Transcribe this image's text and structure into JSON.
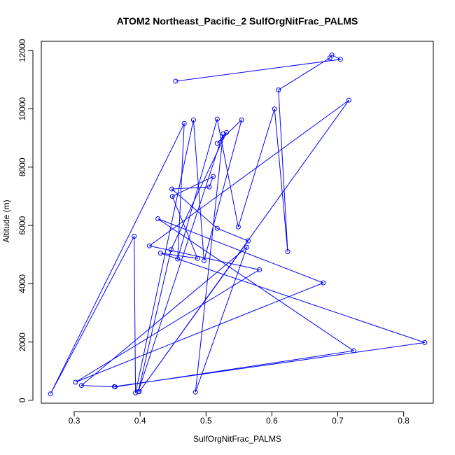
{
  "chart_data": {
    "type": "line",
    "title": "ATOM2 Northeast_Pacific_2 SulfOrgNitFrac_PALMS",
    "xlabel": "SulfOrgNitFrac_PALMS",
    "ylabel": "Altitude (m)",
    "xlim": [
      0.25,
      0.845
    ],
    "ylim": [
      -100,
      12320
    ],
    "xticks": [
      0.3,
      0.4,
      0.5,
      0.6,
      0.7,
      0.8
    ],
    "yticks": [
      0,
      2000,
      4000,
      6000,
      8000,
      10000,
      12000
    ],
    "xtick_labels": [
      "0.3",
      "0.4",
      "0.5",
      "0.6",
      "0.7",
      "0.8"
    ],
    "ytick_labels": [
      "0",
      "2000",
      "4000",
      "6000",
      "8000",
      "10000",
      "12000"
    ],
    "grid": false,
    "markers": "open-circle",
    "line_color": "#0000ff",
    "series": [
      {
        "x": [
          0.454,
          0.704,
          0.691,
          0.688,
          0.61,
          0.624,
          0.604,
          0.549,
          0.517,
          0.457,
          0.467,
          0.264,
          0.391,
          0.393,
          0.481,
          0.497,
          0.554,
          0.517,
          0.531,
          0.447,
          0.397,
          0.526,
          0.484,
          0.562,
          0.311,
          0.362,
          0.724,
          0.427,
          0.678,
          0.302,
          0.581,
          0.414,
          0.717,
          0.399,
          0.564,
          0.517,
          0.448,
          0.505,
          0.511,
          0.449,
          0.487,
          0.431,
          0.832,
          0.361
        ],
        "y": [
          10950,
          11700,
          11850,
          11750,
          10650,
          5100,
          10000,
          5950,
          9650,
          4850,
          9500,
          220,
          5630,
          250,
          9620,
          4790,
          9620,
          8820,
          9190,
          5170,
          290,
          9150,
          280,
          5250,
          510,
          460,
          1700,
          6230,
          4030,
          620,
          4480,
          5300,
          10300,
          300,
          5470,
          5900,
          7250,
          7320,
          7680,
          7000,
          4870,
          5050,
          1980,
          470
        ]
      }
    ]
  }
}
